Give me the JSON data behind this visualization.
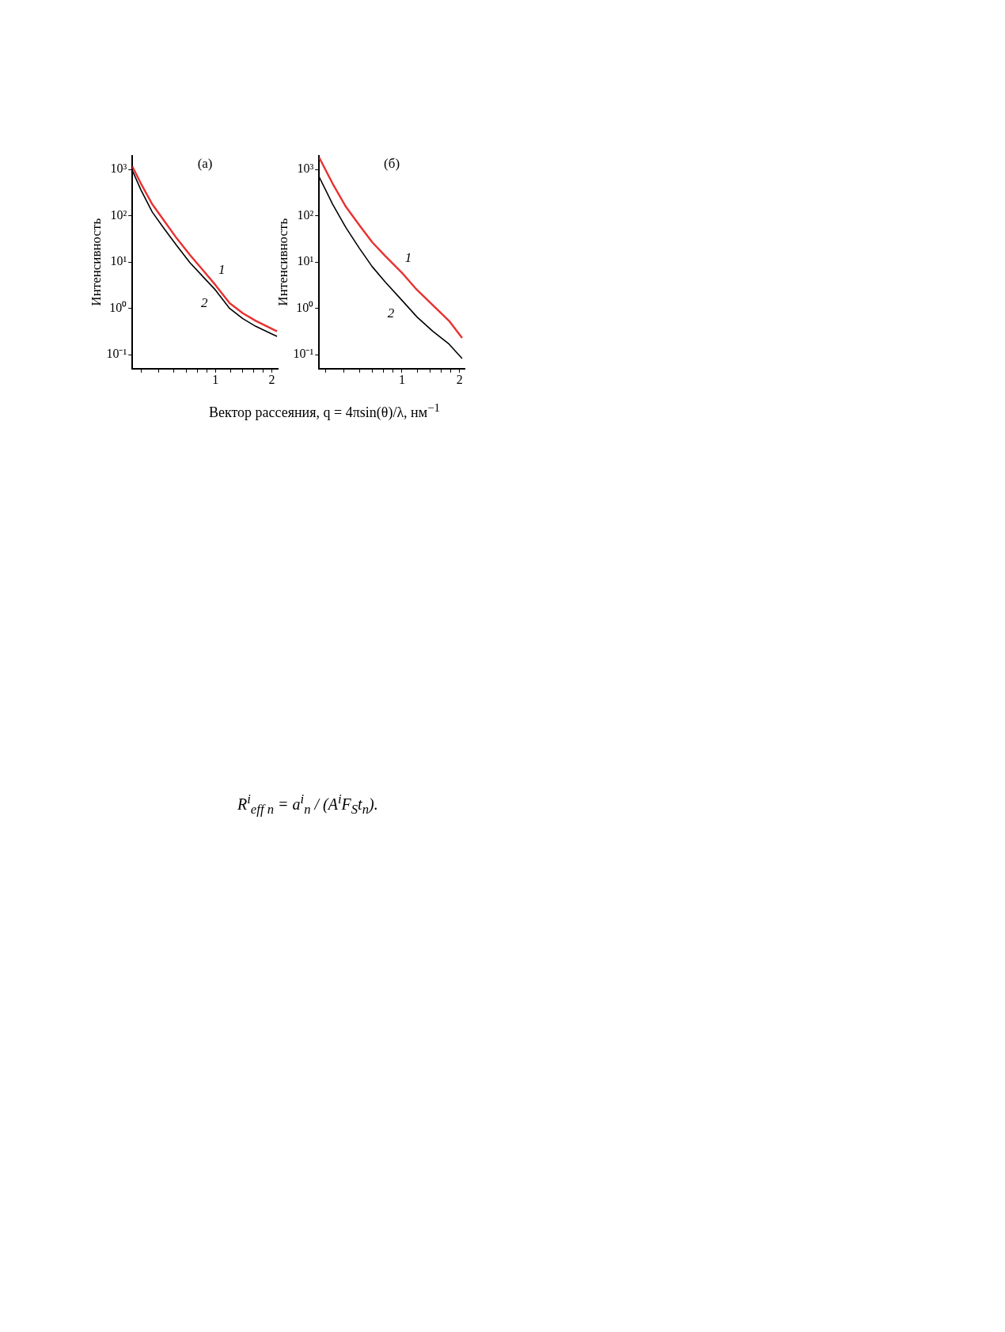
{
  "chart_data": [
    {
      "type": "line",
      "title": "(а)",
      "ylabel": "Интенсивность",
      "xlabel": "Вектор рассеяния, q = 4πsin(θ)/λ, нм$^{−1}$",
      "log": "xy",
      "grid": false,
      "legend": false,
      "marker": "none",
      "line_style": "solid",
      "xlim": [
        0.36,
        2.15
      ],
      "xticks": [
        {
          "value": 0.4,
          "label": null
        },
        {
          "value": 0.5,
          "label": null
        },
        {
          "value": 0.6,
          "label": null
        },
        {
          "value": 0.7,
          "label": null
        },
        {
          "value": 0.8,
          "label": null
        },
        {
          "value": 0.9,
          "label": null
        },
        {
          "value": 1,
          "label": "1"
        },
        {
          "value": 1.2,
          "label": null
        },
        {
          "value": 1.4,
          "label": null
        },
        {
          "value": 1.6,
          "label": null
        },
        {
          "value": 1.8,
          "label": null
        },
        {
          "value": 2,
          "label": "2"
        }
      ],
      "ylim": [
        0.05,
        2000
      ],
      "yticks": [
        {
          "value": 0.1,
          "label": "10⁻¹"
        },
        {
          "value": 1,
          "label": "10⁰"
        },
        {
          "value": 10,
          "label": "10¹"
        },
        {
          "value": 100,
          "label": "10²"
        },
        {
          "value": 1000,
          "label": "10³"
        }
      ],
      "x": [
        0.36,
        0.4,
        0.46,
        0.527,
        0.62,
        0.73,
        0.86,
        1,
        1.19,
        1.4,
        1.64,
        1.93,
        2.13
      ],
      "series": [
        {
          "name": "1",
          "color": "#e8312f",
          "values": [
            1170,
            500,
            178,
            83,
            33,
            14.4,
            6.6,
            3.2,
            1.3,
            0.79,
            0.54,
            0.39,
            0.32
          ]
        },
        {
          "name": "2",
          "color": "#000000",
          "values": [
            960,
            365,
            121,
            56,
            23,
            9.8,
            4.8,
            2.5,
            1.0,
            0.6,
            0.41,
            0.3,
            0.25
          ]
        }
      ]
    },
    {
      "type": "line",
      "title": "(б)",
      "ylabel": "Интенсивность",
      "log": "xy",
      "grid": false,
      "legend": false,
      "marker": "none",
      "line_style": "solid",
      "xlim": [
        0.37,
        2.12
      ],
      "xticks": [
        {
          "value": 0.4,
          "label": null
        },
        {
          "value": 0.5,
          "label": null
        },
        {
          "value": 0.6,
          "label": null
        },
        {
          "value": 0.7,
          "label": null
        },
        {
          "value": 0.8,
          "label": null
        },
        {
          "value": 0.9,
          "label": null
        },
        {
          "value": 1,
          "label": "1"
        },
        {
          "value": 1.2,
          "label": null
        },
        {
          "value": 1.4,
          "label": null
        },
        {
          "value": 1.6,
          "label": null
        },
        {
          "value": 1.8,
          "label": null
        },
        {
          "value": 2,
          "label": "2"
        }
      ],
      "ylim": [
        0.05,
        2000
      ],
      "yticks": [
        {
          "value": 0.1,
          "label": "10⁻¹"
        },
        {
          "value": 1,
          "label": "10⁰"
        },
        {
          "value": 10,
          "label": "10¹"
        },
        {
          "value": 100,
          "label": "10²"
        },
        {
          "value": 1000,
          "label": "10³"
        }
      ],
      "x": [
        0.37,
        0.435,
        0.51,
        0.6,
        0.7,
        0.82,
        1,
        1.2,
        1.45,
        1.76,
        2.06
      ],
      "series": [
        {
          "name": "1",
          "color": "#e8312f",
          "values": [
            1840,
            500,
            158,
            63,
            27,
            13.5,
            5.9,
            2.5,
            1.17,
            0.54,
            0.23
          ]
        },
        {
          "name": "2",
          "color": "#000000",
          "values": [
            700,
            180,
            56,
            20,
            8,
            3.7,
            1.5,
            0.65,
            0.32,
            0.17,
            0.083
          ]
        }
      ],
      "annotations": [
        "R$^{i}$$_{eff n}$ = a$^{i}$$_{n}$ / (A$^{i}$F$_{S}$t$_{n}$)."
      ]
    }
  ]
}
